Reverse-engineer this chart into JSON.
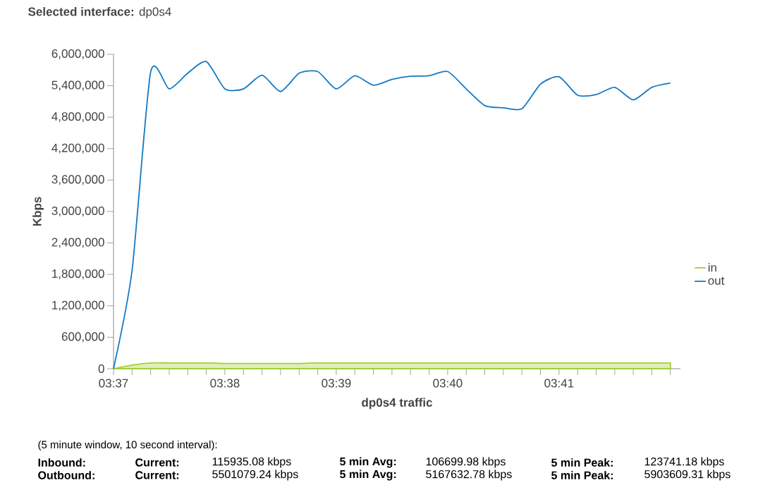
{
  "chart_data": {
    "type": "line",
    "title": "**Selected interface:** dp0s4",
    "xlabel": "dp0s4 traffic",
    "ylabel": "Kbps",
    "x": [
      3.616667,
      3.619444,
      3.622222,
      3.625,
      3.627778,
      3.630556,
      3.633333,
      3.636111,
      3.638889,
      3.641667,
      3.644444,
      3.647222,
      3.65,
      3.652778,
      3.655556,
      3.658333,
      3.661111,
      3.663889,
      3.666667,
      3.669444,
      3.672222,
      3.675,
      3.677778,
      3.680556,
      3.683333,
      3.686111,
      3.688889,
      3.691667,
      3.694444,
      3.697222,
      3.7
    ],
    "series": [
      {
        "name": "in",
        "type": "area",
        "color": "#a6ce39",
        "values": [
          0,
          70000,
          110000,
          110000,
          110000,
          110000,
          100000,
          100000,
          100000,
          100000,
          100000,
          110000,
          110000,
          110000,
          110000,
          110000,
          110000,
          110000,
          110000,
          110000,
          110000,
          110000,
          110000,
          110000,
          110000,
          110000,
          110000,
          110000,
          110000,
          110000,
          110000
        ]
      },
      {
        "name": "out",
        "color": "#1479c4",
        "values": [
          0,
          1880000,
          5660000,
          5340000,
          5640000,
          5860000,
          5340000,
          5340000,
          5600000,
          5290000,
          5640000,
          5670000,
          5340000,
          5590000,
          5410000,
          5520000,
          5580000,
          5590000,
          5670000,
          5340000,
          5020000,
          4980000,
          4960000,
          5430000,
          5570000,
          5220000,
          5230000,
          5370000,
          5130000,
          5370000,
          5450000
        ]
      }
    ],
    "xlim": [
      3.616667,
      3.7015
    ],
    "xticks": [
      {
        "value": 3.616667,
        "label": "03:37"
      },
      {
        "value": 3.619444,
        "label": null
      },
      {
        "value": 3.622222,
        "label": null
      },
      {
        "value": 3.625,
        "label": null
      },
      {
        "value": 3.627778,
        "label": null
      },
      {
        "value": 3.630556,
        "label": null
      },
      {
        "value": 3.633333,
        "label": "03:38"
      },
      {
        "value": 3.636111,
        "label": null
      },
      {
        "value": 3.638889,
        "label": null
      },
      {
        "value": 3.641667,
        "label": null
      },
      {
        "value": 3.644444,
        "label": null
      },
      {
        "value": 3.647222,
        "label": null
      },
      {
        "value": 3.65,
        "label": "03:39"
      },
      {
        "value": 3.652778,
        "label": null
      },
      {
        "value": 3.655556,
        "label": null
      },
      {
        "value": 3.658333,
        "label": null
      },
      {
        "value": 3.661111,
        "label": null
      },
      {
        "value": 3.663889,
        "label": null
      },
      {
        "value": 3.666667,
        "label": "03:40"
      },
      {
        "value": 3.669444,
        "label": null
      },
      {
        "value": 3.672222,
        "label": null
      },
      {
        "value": 3.675,
        "label": null
      },
      {
        "value": 3.677778,
        "label": null
      },
      {
        "value": 3.680556,
        "label": null
      },
      {
        "value": 3.683333,
        "label": "03:41"
      },
      {
        "value": 3.686111,
        "label": null
      },
      {
        "value": 3.688889,
        "label": null
      },
      {
        "value": 3.691667,
        "label": null
      },
      {
        "value": 3.694444,
        "label": null
      },
      {
        "value": 3.697222,
        "label": null
      },
      {
        "value": 3.7,
        "label": null
      }
    ],
    "ylim": [
      0,
      6000000
    ],
    "yticks": [
      0,
      {
        "value": 600000,
        "label": "600,000"
      },
      {
        "value": 1200000,
        "label": "1,200,000"
      },
      {
        "value": 1800000,
        "label": "1,800,000"
      },
      {
        "value": 2400000,
        "label": "2,400,000"
      },
      {
        "value": 3000000,
        "label": "3,000,000"
      },
      {
        "value": 3600000,
        "label": "3,600,000"
      },
      {
        "value": 4200000,
        "label": "4,200,000"
      },
      {
        "value": 4800000,
        "label": "4,800,000"
      },
      {
        "value": 5400000,
        "label": "5,400,000"
      },
      {
        "value": 6000000,
        "label": "6,000,000"
      }
    ],
    "grid": false,
    "legend": "right",
    "marker": "none",
    "annotations": [
      "(5 minute window, 10 second interval):",
      "Inbound:",
      "Current:",
      "115935.08 kbps",
      "5 min Avg:",
      "106699.98 kbps",
      "5 min Peak:",
      "123741.18 kbps",
      "Outbound:",
      "Current:",
      "5501079.24 kbps",
      "5 min Avg:",
      "5167632.78 kbps",
      "5 min Peak:",
      "5903609.31 kbps"
    ]
  }
}
